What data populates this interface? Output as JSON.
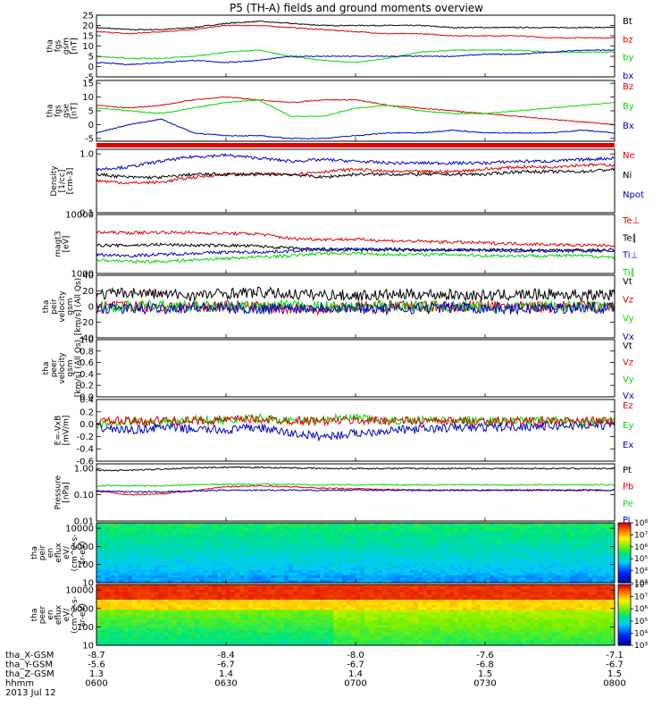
{
  "title": "P5 (TH-A) fields and ground moments overview",
  "colors": {
    "black": "#000000",
    "red": "#e00000",
    "green": "#00d800",
    "blue": "#0000c8"
  },
  "chart_data": {
    "type": "line",
    "x_time_ticks": [
      "0600",
      "0630",
      "0700",
      "0730",
      "0800"
    ],
    "panels": [
      {
        "id": "fgs-gsm",
        "ylabel": [
          "tha",
          "fgs",
          "gsm",
          "[nT]"
        ],
        "ylim": [
          -5,
          25
        ],
        "log": false,
        "yticks": [
          "25",
          "20",
          "15",
          "10",
          "5",
          "0",
          "-5"
        ],
        "ytick_values": [
          25,
          20,
          15,
          10,
          5,
          0,
          -5
        ],
        "legend": [
          "Bt",
          "bz",
          "by",
          "bx"
        ],
        "legend_colors": [
          "black",
          "red",
          "green",
          "blue"
        ],
        "series": [
          {
            "color": "black",
            "values": [
              19,
              18,
              18,
              19,
              21,
              22,
              21,
              20,
              20,
              20,
              20,
              19,
              19,
              19,
              19,
              19,
              19
            ]
          },
          {
            "color": "red",
            "values": [
              17,
              16,
              17,
              18,
              20,
              20,
              19,
              18,
              17,
              16,
              16,
              15,
              15,
              15,
              14,
              14,
              14
            ]
          },
          {
            "color": "green",
            "values": [
              5,
              4,
              4,
              5,
              7,
              8,
              5,
              3,
              2,
              4,
              7,
              8,
              8,
              8,
              7,
              7,
              7
            ]
          },
          {
            "color": "blue",
            "values": [
              2,
              1,
              2,
              3,
              2,
              3,
              5,
              5,
              5,
              5,
              5,
              5,
              6,
              6,
              7,
              8,
              8
            ]
          }
        ]
      },
      {
        "id": "fgs-gse",
        "ylabel": [
          "tha",
          "fgs",
          "gse",
          "[nT]"
        ],
        "ylim": [
          -6,
          16
        ],
        "log": false,
        "yticks": [
          "15",
          "10",
          "5",
          "0",
          "-5"
        ],
        "ytick_values": [
          15,
          10,
          5,
          0,
          -5
        ],
        "legend": [
          "Bz",
          "By",
          "Bx"
        ],
        "legend_colors": [
          "red",
          "green",
          "blue"
        ],
        "series": [
          {
            "color": "red",
            "values": [
              7,
              6,
              7,
              9,
              10,
              9,
              8,
              9,
              9,
              7,
              6,
              5,
              4,
              3,
              2,
              1,
              0
            ]
          },
          {
            "color": "green",
            "values": [
              6,
              5,
              4,
              6,
              8,
              9,
              3,
              3,
              6,
              7,
              5,
              4,
              4,
              5,
              6,
              7,
              8
            ]
          },
          {
            "color": "blue",
            "values": [
              -3,
              0,
              2,
              -3,
              -4,
              -4,
              -5,
              -5,
              -4,
              -3,
              -3,
              -2,
              -3,
              -3,
              -3,
              -2,
              -3
            ]
          }
        ]
      },
      {
        "id": "density",
        "ylabel": [
          "Density",
          "[1/cc]",
          "[cm-3]"
        ],
        "ylim": [
          0.1,
          1.2
        ],
        "log": true,
        "yticks": [
          "1.0",
          "0.1"
        ],
        "ytick_values": [
          1.0,
          0.1
        ],
        "legend": [
          "Ne",
          "Ni",
          "Npot"
        ],
        "legend_colors": [
          "red",
          "black",
          "blue"
        ],
        "series": [
          {
            "color": "blue",
            "values": [
              0.55,
              0.6,
              0.75,
              0.9,
              0.95,
              0.85,
              0.75,
              0.8,
              0.75,
              0.7,
              0.7,
              0.7,
              0.7,
              0.75,
              0.75,
              0.8,
              0.85
            ]
          },
          {
            "color": "red",
            "values": [
              0.35,
              0.32,
              0.33,
              0.4,
              0.45,
              0.45,
              0.45,
              0.5,
              0.55,
              0.5,
              0.5,
              0.5,
              0.55,
              0.6,
              0.6,
              0.65,
              0.65
            ]
          },
          {
            "color": "black",
            "values": [
              0.45,
              0.4,
              0.4,
              0.45,
              0.45,
              0.45,
              0.45,
              0.4,
              0.45,
              0.45,
              0.45,
              0.45,
              0.45,
              0.5,
              0.5,
              0.5,
              0.55
            ]
          }
        ]
      },
      {
        "id": "temperature",
        "ylabel": [
          "magt3",
          "[eV]"
        ],
        "ylim": [
          1000,
          10000
        ],
        "log": true,
        "yticks": [
          "10000",
          "1000"
        ],
        "ytick_values": [
          10000,
          1000
        ],
        "legend": [
          "Te⊥",
          "Te∥",
          "Ti⊥",
          "Ti∥"
        ],
        "legend_colors": [
          "red",
          "black",
          "blue",
          "green"
        ],
        "series": [
          {
            "color": "red",
            "values": [
              5000,
              4900,
              5000,
              4900,
              4800,
              4700,
              3900,
              3800,
              3800,
              3600,
              3500,
              3400,
              3300,
              3200,
              3100,
              3000,
              3000
            ]
          },
          {
            "color": "black",
            "values": [
              3000,
              3000,
              3100,
              3000,
              3000,
              2900,
              2700,
              2500,
              2500,
              2500,
              2500,
              2500,
              2500,
              2500,
              2500,
              2500,
              2500
            ]
          },
          {
            "color": "blue",
            "values": [
              2100,
              2000,
              2100,
              2200,
              2300,
              2300,
              2400,
              2600,
              2600,
              2600,
              2500,
              2500,
              2500,
              2400,
              2400,
              2400,
              2400
            ]
          },
          {
            "color": "green",
            "values": [
              1700,
              1600,
              1600,
              1700,
              1800,
              1900,
              2000,
              2200,
              2200,
              2100,
              2100,
              2100,
              2000,
              2000,
              2000,
              2000,
              1900
            ]
          }
        ]
      },
      {
        "id": "peir-velocity",
        "ylabel": [
          "tha",
          "peir",
          "velocity",
          "gsm",
          "[km/s] (All Qs)"
        ],
        "ylim": [
          -40,
          40
        ],
        "log": false,
        "yticks": [
          "40",
          "20",
          "0",
          "-20",
          "-40"
        ],
        "ytick_values": [
          40,
          20,
          0,
          -20,
          -40
        ],
        "legend": [
          "Vt",
          "Vz",
          "Vy",
          "Vx"
        ],
        "legend_colors": [
          "black",
          "red",
          "green",
          "blue"
        ],
        "series": [
          {
            "color": "black",
            "values": [
              15,
              18,
              16,
              14,
              17,
              18,
              16,
              15,
              14,
              15,
              16,
              15,
              14,
              15,
              16,
              15,
              15
            ]
          },
          {
            "color": "red",
            "values": [
              0,
              1,
              -1,
              0,
              1,
              0,
              -2,
              -3,
              0,
              1,
              0,
              0,
              1,
              0,
              0,
              1,
              0
            ]
          },
          {
            "color": "green",
            "values": [
              -1,
              0,
              1,
              0,
              -1,
              0,
              1,
              0,
              -1,
              0,
              1,
              0,
              -1,
              0,
              1,
              0,
              -1
            ]
          },
          {
            "color": "blue",
            "values": [
              -2,
              -3,
              -2,
              -1,
              -2,
              -3,
              -2,
              -1,
              -2,
              -3,
              -2,
              -1,
              -2,
              -3,
              -2,
              -1,
              -2
            ]
          }
        ]
      },
      {
        "id": "peer-velocity",
        "ylabel": [
          "tha",
          "peer",
          "velocity",
          "gsm",
          "[km/s] (All Qs)"
        ],
        "ylim": [
          0,
          1
        ],
        "log": false,
        "yticks": [
          "1.0",
          "0.8",
          "0.6",
          "0.4",
          "0.2",
          "0.0"
        ],
        "ytick_values": [
          1.0,
          0.8,
          0.6,
          0.4,
          0.2,
          0.0
        ],
        "legend": [
          "Vt",
          "Vz",
          "Vy",
          "Vx"
        ],
        "legend_colors": [
          "black",
          "red",
          "green",
          "blue"
        ],
        "series": []
      },
      {
        "id": "efield",
        "ylabel": [
          "E=-VxB",
          "[mV/m]"
        ],
        "ylim": [
          -0.6,
          0.4
        ],
        "log": false,
        "yticks": [
          "0.4",
          "0.2",
          "0.0",
          "-0.2",
          "-0.4",
          "-0.6"
        ],
        "ytick_values": [
          0.4,
          0.2,
          0.0,
          -0.2,
          -0.4,
          -0.6
        ],
        "legend": [
          "Ez",
          "Ey",
          "Ex"
        ],
        "legend_colors": [
          "red",
          "green",
          "blue"
        ],
        "series": [
          {
            "color": "green",
            "values": [
              0,
              0.05,
              0.02,
              0.08,
              0.05,
              0.1,
              0.05,
              0.08,
              0.1,
              0.05,
              0.07,
              0.06,
              0.05,
              0.06,
              0.05,
              0.04,
              0.05
            ]
          },
          {
            "color": "blue",
            "values": [
              -0.05,
              -0.1,
              -0.05,
              -0.08,
              -0.1,
              -0.05,
              -0.15,
              -0.2,
              -0.15,
              -0.1,
              -0.08,
              -0.06,
              -0.05,
              -0.04,
              -0.03,
              -0.02,
              -0.02
            ]
          },
          {
            "color": "red",
            "values": [
              0.05,
              0.05,
              0.06,
              0.05,
              0.07,
              0.08,
              0.06,
              0.05,
              0.06,
              0.06,
              0.05,
              0.05,
              0.05,
              0.05,
              0.05,
              0.05,
              0.05
            ]
          }
        ]
      },
      {
        "id": "pressure",
        "ylabel": [
          "Pressure",
          "[nPa]"
        ],
        "ylim": [
          0.01,
          1.5
        ],
        "log": true,
        "yticks": [
          "1.00",
          "0.10",
          "0.01"
        ],
        "ytick_values": [
          1.0,
          0.1,
          0.01
        ],
        "legend": [
          "Pt",
          "Pb",
          "Pe",
          "Pi"
        ],
        "legend_colors": [
          "black",
          "red",
          "green",
          "blue"
        ],
        "series": [
          {
            "color": "black",
            "values": [
              0.85,
              0.85,
              0.95,
              1.05,
              1.1,
              1.1,
              1.05,
              1.0,
              1.0,
              1.0,
              1.0,
              1.0,
              1.0,
              1.0,
              1.0,
              1.0,
              1.0
            ]
          },
          {
            "color": "red",
            "values": [
              0.14,
              0.1,
              0.11,
              0.14,
              0.2,
              0.22,
              0.2,
              0.18,
              0.17,
              0.16,
              0.15,
              0.15,
              0.15,
              0.15,
              0.15,
              0.15,
              0.15
            ]
          },
          {
            "color": "green",
            "values": [
              0.22,
              0.22,
              0.22,
              0.24,
              0.25,
              0.25,
              0.25,
              0.24,
              0.24,
              0.24,
              0.24,
              0.24,
              0.24,
              0.24,
              0.24,
              0.24,
              0.24
            ]
          },
          {
            "color": "blue",
            "values": [
              0.14,
              0.13,
              0.13,
              0.14,
              0.15,
              0.15,
              0.15,
              0.15,
              0.15,
              0.15,
              0.15,
              0.15,
              0.15,
              0.15,
              0.15,
              0.15,
              0.15
            ]
          }
        ]
      },
      {
        "id": "peir-spectrogram",
        "type": "heatmap",
        "ylabel": [
          "tha",
          "peir",
          "en",
          "eflux",
          "eV/",
          "(cm^2-s-",
          "sr-eV)"
        ],
        "ylim": [
          10,
          20000
        ],
        "log": true,
        "yticks": [
          "10000",
          "1000",
          "100",
          "10"
        ],
        "ytick_values": [
          10000,
          1000,
          100,
          10
        ],
        "colorbar": {
          "min_exp": 3,
          "max_exp": 8,
          "ticks": [
            "10³",
            "10⁴",
            "10⁵",
            "10⁶",
            "10⁷",
            "10⁸"
          ]
        }
      },
      {
        "id": "peer-spectrogram",
        "type": "heatmap",
        "ylabel": [
          "tha",
          "peer",
          "en",
          "eflux",
          "eV/",
          "(cm^2-s-",
          "sr-eV)"
        ],
        "ylim": [
          10,
          20000
        ],
        "log": true,
        "yticks": [
          "10000",
          "1000",
          "100",
          "10"
        ],
        "ytick_values": [
          10000,
          1000,
          100,
          10
        ],
        "colorbar": {
          "min_exp": 3,
          "max_exp": 8,
          "ticks": [
            "10³",
            "10⁴",
            "10⁵",
            "10⁶",
            "10⁷",
            "10⁸"
          ]
        }
      }
    ],
    "footer": {
      "rows": [
        {
          "label": "tha_X-GSM",
          "values": [
            "-8.7",
            "-8.4",
            "-8.0",
            "-7.6",
            "-7.1"
          ]
        },
        {
          "label": "tha_Y-GSM",
          "values": [
            "-5.6",
            "-6.7",
            "-6.7",
            "-6.8",
            "-6.7"
          ]
        },
        {
          "label": "tha_Z-GSM",
          "values": [
            "1.3",
            "1.4",
            "1.4",
            "1.5",
            "1.5"
          ]
        },
        {
          "label": "hhmm",
          "values": [
            "0600",
            "0630",
            "0700",
            "0730",
            "0800"
          ]
        }
      ],
      "date": "2013 Jul 12"
    }
  }
}
